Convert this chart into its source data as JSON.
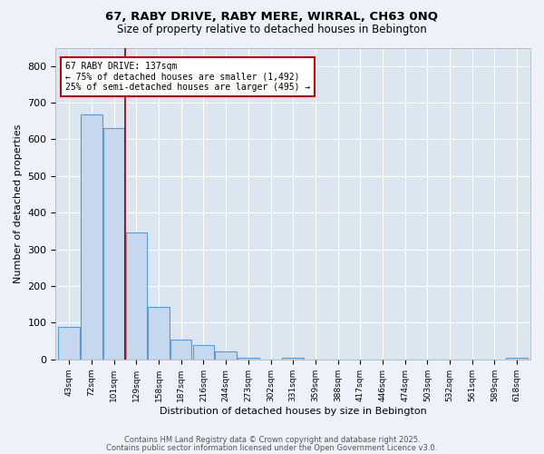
{
  "title_line1": "67, RABY DRIVE, RABY MERE, WIRRAL, CH63 0NQ",
  "title_line2": "Size of property relative to detached houses in Bebington",
  "xlabel": "Distribution of detached houses by size in Bebington",
  "ylabel": "Number of detached properties",
  "categories": [
    "43sqm",
    "72sqm",
    "101sqm",
    "129sqm",
    "158sqm",
    "187sqm",
    "216sqm",
    "244sqm",
    "273sqm",
    "302sqm",
    "331sqm",
    "359sqm",
    "388sqm",
    "417sqm",
    "446sqm",
    "474sqm",
    "503sqm",
    "532sqm",
    "561sqm",
    "589sqm",
    "618sqm"
  ],
  "values": [
    88,
    668,
    630,
    345,
    143,
    53,
    40,
    22,
    5,
    0,
    5,
    0,
    0,
    0,
    0,
    0,
    0,
    0,
    0,
    0,
    5
  ],
  "bar_color": "#c5d8ed",
  "bar_edge_color": "#5b9bd5",
  "red_line_x": 2.5,
  "annotation_title": "67 RABY DRIVE: 137sqm",
  "annotation_line1": "← 75% of detached houses are smaller (1,492)",
  "annotation_line2": "25% of semi-detached houses are larger (495) →",
  "ylim": [
    0,
    850
  ],
  "yticks": [
    0,
    100,
    200,
    300,
    400,
    500,
    600,
    700,
    800
  ],
  "fig_bg": "#eef2f8",
  "plot_bg": "#dce6f1",
  "grid_color": "#ffffff",
  "footer_line1": "Contains HM Land Registry data © Crown copyright and database right 2025.",
  "footer_line2": "Contains public sector information licensed under the Open Government Licence v3.0."
}
